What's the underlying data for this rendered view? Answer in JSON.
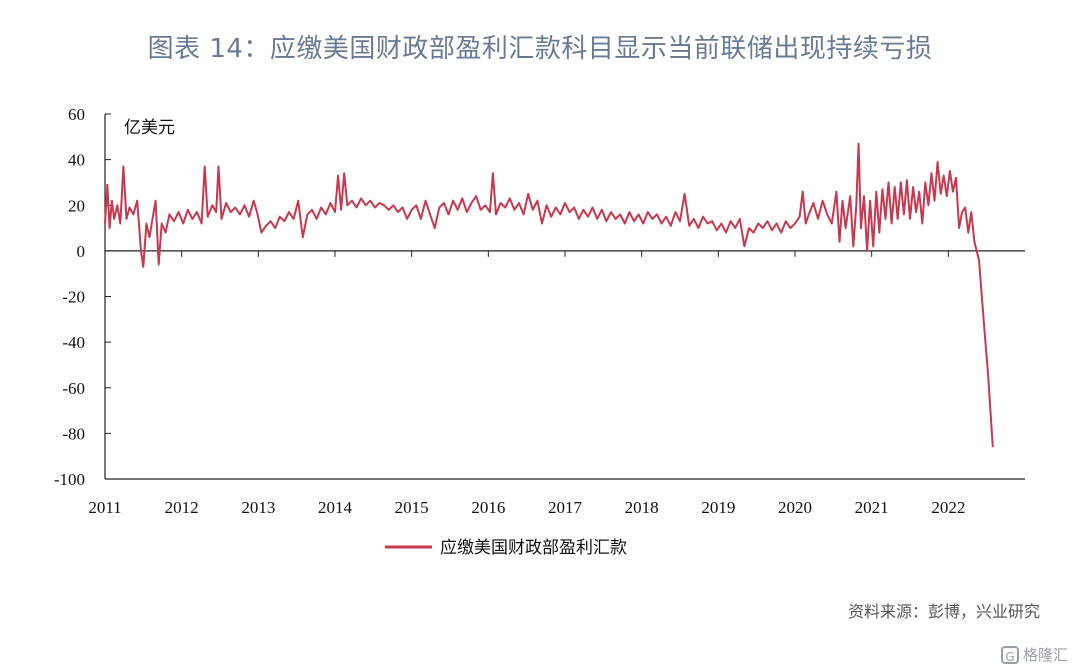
{
  "header": {
    "title": "图表 14：应缴美国财政部盈利汇款科目显示当前联储出现持续亏损"
  },
  "source": "资料来源：彭博，兴业研究",
  "watermark": {
    "icon": "G",
    "text": "格隆汇"
  },
  "chart_data": {
    "type": "line",
    "unit_label": "亿美元",
    "ylim": [
      -100,
      60
    ],
    "y_ticks": [
      "60",
      "40",
      "20",
      "0",
      "-20",
      "-40",
      "-60",
      "-80",
      "-100"
    ],
    "x_ticks": [
      "2011",
      "2012",
      "2013",
      "2014",
      "2015",
      "2016",
      "2017",
      "2018",
      "2019",
      "2020",
      "2021",
      "2022"
    ],
    "legend_position": "bottom-center",
    "series": [
      {
        "name": "应缴美国财政部盈利汇款",
        "color": "#c8384f",
        "points": [
          [
            2011.0,
            12
          ],
          [
            2011.03,
            29
          ],
          [
            2011.06,
            10
          ],
          [
            2011.09,
            22
          ],
          [
            2011.12,
            14
          ],
          [
            2011.16,
            20
          ],
          [
            2011.2,
            12
          ],
          [
            2011.24,
            37
          ],
          [
            2011.28,
            14
          ],
          [
            2011.32,
            19
          ],
          [
            2011.37,
            16
          ],
          [
            2011.42,
            22
          ],
          [
            2011.47,
            0
          ],
          [
            2011.5,
            -7
          ],
          [
            2011.54,
            12
          ],
          [
            2011.58,
            6
          ],
          [
            2011.62,
            14
          ],
          [
            2011.66,
            22
          ],
          [
            2011.7,
            -6
          ],
          [
            2011.74,
            12
          ],
          [
            2011.79,
            8
          ],
          [
            2011.84,
            16
          ],
          [
            2011.9,
            13
          ],
          [
            2011.96,
            17
          ],
          [
            2012.02,
            12
          ],
          [
            2012.08,
            18
          ],
          [
            2012.14,
            14
          ],
          [
            2012.2,
            17
          ],
          [
            2012.26,
            12
          ],
          [
            2012.3,
            37
          ],
          [
            2012.34,
            15
          ],
          [
            2012.4,
            20
          ],
          [
            2012.45,
            17
          ],
          [
            2012.48,
            37
          ],
          [
            2012.52,
            14
          ],
          [
            2012.58,
            21
          ],
          [
            2012.64,
            17
          ],
          [
            2012.7,
            19
          ],
          [
            2012.76,
            16
          ],
          [
            2012.82,
            20
          ],
          [
            2012.88,
            15
          ],
          [
            2012.94,
            22
          ],
          [
            2012.99,
            16
          ],
          [
            2013.04,
            8
          ],
          [
            2013.1,
            11
          ],
          [
            2013.16,
            13
          ],
          [
            2013.22,
            10
          ],
          [
            2013.28,
            15
          ],
          [
            2013.34,
            13
          ],
          [
            2013.4,
            17
          ],
          [
            2013.46,
            14
          ],
          [
            2013.52,
            22
          ],
          [
            2013.58,
            6
          ],
          [
            2013.64,
            16
          ],
          [
            2013.7,
            18
          ],
          [
            2013.76,
            14
          ],
          [
            2013.82,
            19
          ],
          [
            2013.88,
            16
          ],
          [
            2013.94,
            21
          ],
          [
            2014.0,
            17
          ],
          [
            2014.04,
            33
          ],
          [
            2014.08,
            18
          ],
          [
            2014.12,
            34
          ],
          [
            2014.16,
            20
          ],
          [
            2014.22,
            22
          ],
          [
            2014.28,
            19
          ],
          [
            2014.34,
            23
          ],
          [
            2014.4,
            20
          ],
          [
            2014.46,
            22
          ],
          [
            2014.52,
            19
          ],
          [
            2014.58,
            21
          ],
          [
            2014.64,
            20
          ],
          [
            2014.7,
            18
          ],
          [
            2014.76,
            20
          ],
          [
            2014.82,
            17
          ],
          [
            2014.88,
            19
          ],
          [
            2014.94,
            14
          ],
          [
            2015.0,
            18
          ],
          [
            2015.06,
            20
          ],
          [
            2015.12,
            14
          ],
          [
            2015.18,
            22
          ],
          [
            2015.24,
            16
          ],
          [
            2015.3,
            10
          ],
          [
            2015.36,
            19
          ],
          [
            2015.42,
            21
          ],
          [
            2015.48,
            16
          ],
          [
            2015.54,
            22
          ],
          [
            2015.6,
            18
          ],
          [
            2015.66,
            23
          ],
          [
            2015.72,
            17
          ],
          [
            2015.78,
            21
          ],
          [
            2015.84,
            24
          ],
          [
            2015.9,
            18
          ],
          [
            2015.96,
            20
          ],
          [
            2016.02,
            17
          ],
          [
            2016.06,
            34
          ],
          [
            2016.1,
            16
          ],
          [
            2016.16,
            21
          ],
          [
            2016.22,
            19
          ],
          [
            2016.28,
            23
          ],
          [
            2016.34,
            18
          ],
          [
            2016.4,
            21
          ],
          [
            2016.46,
            16
          ],
          [
            2016.52,
            25
          ],
          [
            2016.58,
            18
          ],
          [
            2016.64,
            22
          ],
          [
            2016.7,
            12
          ],
          [
            2016.76,
            20
          ],
          [
            2016.82,
            15
          ],
          [
            2016.88,
            19
          ],
          [
            2016.94,
            16
          ],
          [
            2017.0,
            21
          ],
          [
            2017.06,
            17
          ],
          [
            2017.12,
            19
          ],
          [
            2017.18,
            14
          ],
          [
            2017.24,
            18
          ],
          [
            2017.3,
            15
          ],
          [
            2017.36,
            19
          ],
          [
            2017.42,
            14
          ],
          [
            2017.48,
            18
          ],
          [
            2017.54,
            13
          ],
          [
            2017.6,
            17
          ],
          [
            2017.66,
            14
          ],
          [
            2017.72,
            16
          ],
          [
            2017.78,
            12
          ],
          [
            2017.84,
            17
          ],
          [
            2017.9,
            13
          ],
          [
            2017.96,
            16
          ],
          [
            2018.02,
            12
          ],
          [
            2018.08,
            17
          ],
          [
            2018.14,
            14
          ],
          [
            2018.2,
            16
          ],
          [
            2018.26,
            12
          ],
          [
            2018.32,
            15
          ],
          [
            2018.38,
            11
          ],
          [
            2018.44,
            17
          ],
          [
            2018.5,
            13
          ],
          [
            2018.56,
            25
          ],
          [
            2018.62,
            11
          ],
          [
            2018.68,
            14
          ],
          [
            2018.74,
            10
          ],
          [
            2018.8,
            15
          ],
          [
            2018.86,
            12
          ],
          [
            2018.92,
            13
          ],
          [
            2018.98,
            9
          ],
          [
            2019.04,
            12
          ],
          [
            2019.1,
            8
          ],
          [
            2019.16,
            13
          ],
          [
            2019.22,
            10
          ],
          [
            2019.28,
            14
          ],
          [
            2019.34,
            2
          ],
          [
            2019.4,
            10
          ],
          [
            2019.46,
            8
          ],
          [
            2019.52,
            12
          ],
          [
            2019.58,
            10
          ],
          [
            2019.64,
            13
          ],
          [
            2019.7,
            9
          ],
          [
            2019.76,
            12
          ],
          [
            2019.82,
            8
          ],
          [
            2019.88,
            13
          ],
          [
            2019.94,
            10
          ],
          [
            2020.0,
            12
          ],
          [
            2020.06,
            15
          ],
          [
            2020.1,
            26
          ],
          [
            2020.14,
            12
          ],
          [
            2020.18,
            16
          ],
          [
            2020.24,
            21
          ],
          [
            2020.3,
            14
          ],
          [
            2020.36,
            22
          ],
          [
            2020.42,
            16
          ],
          [
            2020.48,
            12
          ],
          [
            2020.54,
            26
          ],
          [
            2020.58,
            4
          ],
          [
            2020.62,
            22
          ],
          [
            2020.66,
            10
          ],
          [
            2020.72,
            24
          ],
          [
            2020.76,
            2
          ],
          [
            2020.8,
            20
          ],
          [
            2020.83,
            47
          ],
          [
            2020.86,
            10
          ],
          [
            2020.9,
            24
          ],
          [
            2020.94,
            0
          ],
          [
            2020.98,
            22
          ],
          [
            2021.02,
            2
          ],
          [
            2021.06,
            26
          ],
          [
            2021.1,
            8
          ],
          [
            2021.14,
            27
          ],
          [
            2021.18,
            14
          ],
          [
            2021.22,
            30
          ],
          [
            2021.26,
            12
          ],
          [
            2021.3,
            28
          ],
          [
            2021.34,
            14
          ],
          [
            2021.38,
            30
          ],
          [
            2021.42,
            16
          ],
          [
            2021.46,
            31
          ],
          [
            2021.5,
            14
          ],
          [
            2021.54,
            28
          ],
          [
            2021.58,
            17
          ],
          [
            2021.62,
            26
          ],
          [
            2021.66,
            12
          ],
          [
            2021.7,
            30
          ],
          [
            2021.74,
            20
          ],
          [
            2021.78,
            34
          ],
          [
            2021.82,
            22
          ],
          [
            2021.86,
            39
          ],
          [
            2021.9,
            25
          ],
          [
            2021.94,
            33
          ],
          [
            2021.98,
            24
          ],
          [
            2022.02,
            35
          ],
          [
            2022.06,
            26
          ],
          [
            2022.1,
            32
          ],
          [
            2022.14,
            10
          ],
          [
            2022.18,
            17
          ],
          [
            2022.22,
            19
          ],
          [
            2022.26,
            8
          ],
          [
            2022.3,
            17
          ],
          [
            2022.34,
            4
          ],
          [
            2022.4,
            -4
          ],
          [
            2022.46,
            -30
          ],
          [
            2022.52,
            -55
          ],
          [
            2022.58,
            -86
          ]
        ]
      }
    ]
  }
}
